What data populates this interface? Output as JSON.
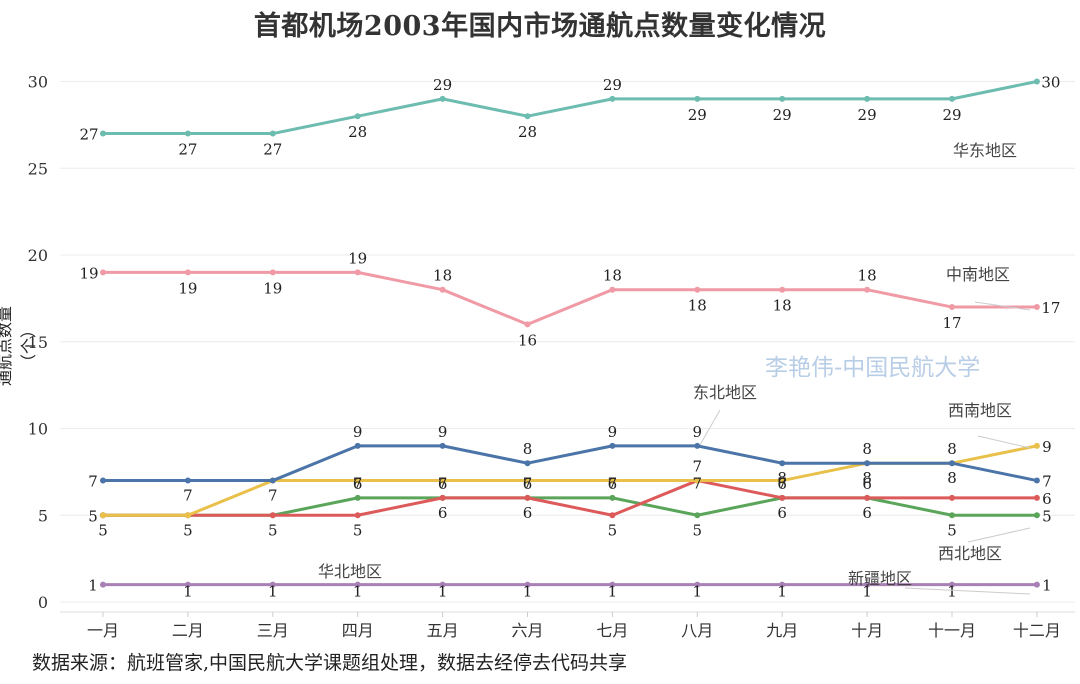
{
  "title": "首都机场2003年国内市场通航点数量变化情况",
  "ylabel": "通航点数量（个）",
  "source": "数据来源：航班管家,中国民航大学课题组处理，数据去经停去代码共享",
  "watermark": "李艳伟-中国民航大学",
  "chart_data": {
    "type": "line",
    "title": "首都机场2003年国内市场通航点数量变化情况",
    "xlabel": "",
    "ylabel": "通航点数量（个）",
    "categories": [
      "一月",
      "二月",
      "三月",
      "四月",
      "五月",
      "六月",
      "七月",
      "八月",
      "九月",
      "十月",
      "十一月",
      "十二月"
    ],
    "yticks": [
      0,
      5,
      10,
      15,
      20,
      25,
      30
    ],
    "ylim": [
      0,
      30
    ],
    "grid": "horizontal",
    "series": [
      {
        "name": "华东地区",
        "color": "#6dbcb0",
        "values": [
          27,
          27,
          27,
          28,
          29,
          28,
          29,
          29,
          29,
          29,
          29,
          30
        ]
      },
      {
        "name": "中南地区",
        "color": "#f09aa6",
        "values": [
          19,
          19,
          19,
          19,
          18,
          16,
          18,
          18,
          18,
          18,
          17,
          17
        ]
      },
      {
        "name": "东北地区",
        "color": "#4b74a8",
        "values": [
          7,
          7,
          7,
          9,
          9,
          8,
          9,
          9,
          8,
          8,
          8,
          7
        ]
      },
      {
        "name": "西南地区",
        "color": "#e8c04a",
        "values": [
          5,
          5,
          7,
          7,
          7,
          7,
          7,
          7,
          7,
          8,
          8,
          9
        ]
      },
      {
        "name": "华北地区",
        "color": "#dc5a5a",
        "values": [
          5,
          5,
          5,
          5,
          6,
          6,
          5,
          7,
          6,
          6,
          6,
          6
        ]
      },
      {
        "name": "西北地区",
        "color": "#5aa55a",
        "values": [
          5,
          5,
          5,
          6,
          6,
          6,
          6,
          5,
          6,
          6,
          5,
          5
        ]
      },
      {
        "name": "新疆地区",
        "color": "#a980b6",
        "values": [
          1,
          1,
          1,
          1,
          1,
          1,
          1,
          1,
          1,
          1,
          1,
          1
        ]
      }
    ]
  }
}
